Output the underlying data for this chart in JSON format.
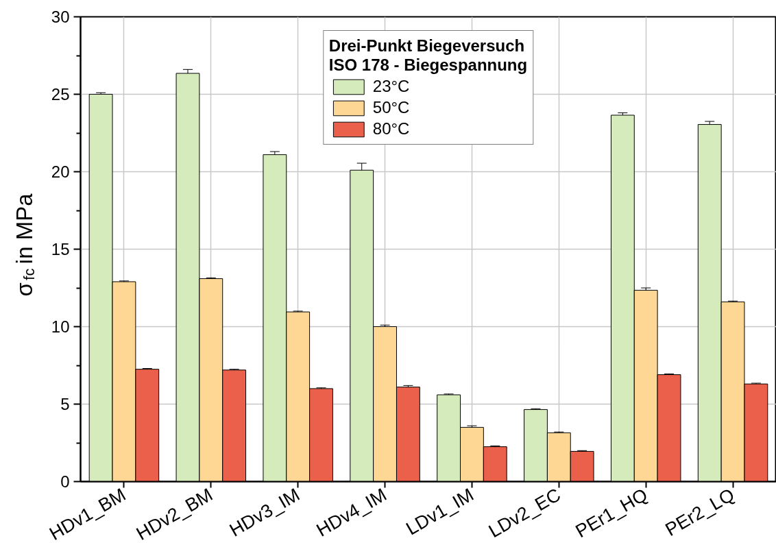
{
  "chart_data": {
    "type": "bar",
    "ylabel": "σ$_{fc}$ in MPa",
    "legend_title": "Drei-Punkt Biegeversuch\nISO 178 - Biegespannung",
    "categories": [
      "HDv1_BM",
      "HDv2_BM",
      "HDv3_IM",
      "HDv4_IM",
      "LDv1_IM",
      "LDv2_EC",
      "PEr1_HQ",
      "PEr2_LQ"
    ],
    "series": [
      {
        "name": "23°C",
        "color": "#d5ebbc",
        "values": [
          25.0,
          26.35,
          21.1,
          20.1,
          5.6,
          4.65,
          23.65,
          23.05
        ],
        "errors": [
          0.1,
          0.25,
          0.2,
          0.45,
          0.05,
          0.05,
          0.15,
          0.2
        ]
      },
      {
        "name": "50°C",
        "color": "#fdd793",
        "values": [
          12.9,
          13.1,
          10.95,
          10.0,
          3.5,
          3.15,
          12.35,
          11.6
        ],
        "errors": [
          0.05,
          0.05,
          0.05,
          0.1,
          0.1,
          0.05,
          0.15,
          0.05
        ]
      },
      {
        "name": "80°C",
        "color": "#eb604a",
        "values": [
          7.25,
          7.2,
          6.0,
          6.1,
          2.25,
          1.95,
          6.9,
          6.3
        ],
        "errors": [
          0.05,
          0.05,
          0.05,
          0.1,
          0.05,
          0.05,
          0.05,
          0.05
        ]
      }
    ],
    "ylim": [
      0,
      30
    ],
    "yticks": [
      0,
      {
        "value": 2.5,
        "label": null
      },
      5,
      {
        "value": 7.5,
        "label": null
      },
      10,
      {
        "value": 12.5,
        "label": null
      },
      15,
      {
        "value": 17.5,
        "label": null
      },
      20,
      {
        "value": 22.5,
        "label": null
      },
      25,
      {
        "value": 27.5,
        "label": null
      },
      30
    ],
    "grid": true,
    "legend": "top"
  }
}
